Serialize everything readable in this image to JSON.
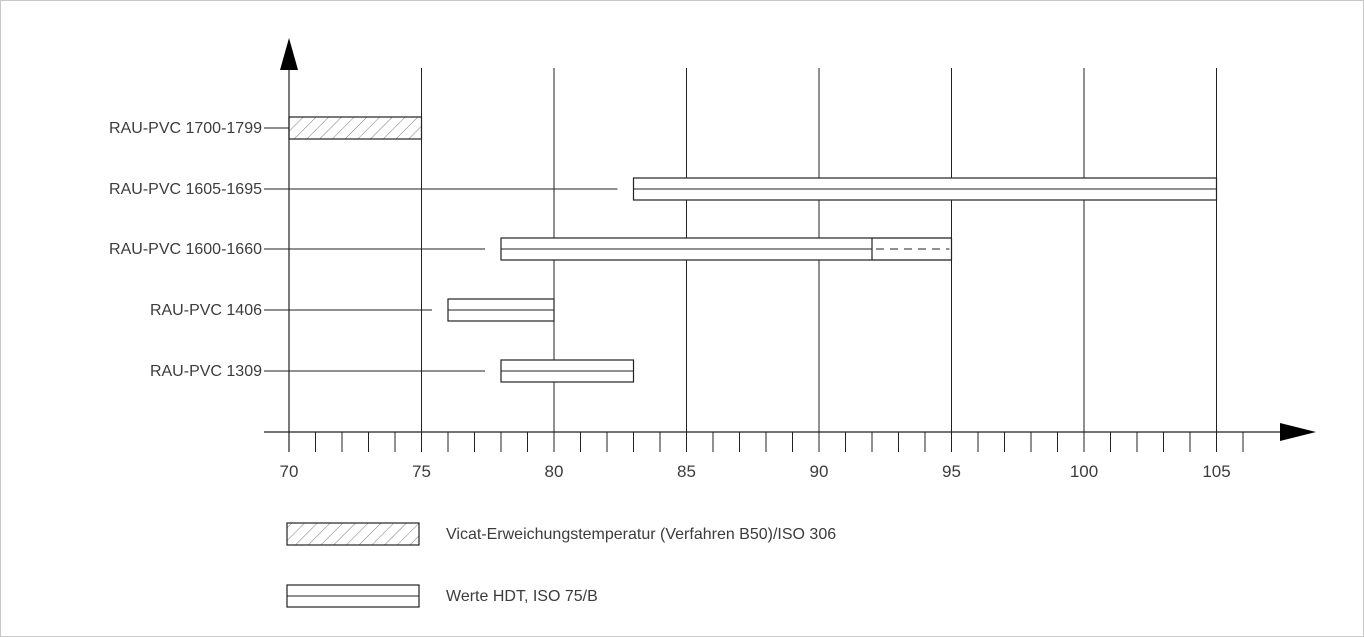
{
  "chart_data": {
    "type": "bar",
    "title": "",
    "xlabel": "",
    "ylabel": "",
    "x_range": [
      70,
      106
    ],
    "x_tick_labels": [
      "70",
      "75",
      "80",
      "85",
      "90",
      "95",
      "100",
      "105"
    ],
    "grid": "vertical lines every 5 units",
    "categories": [
      "RAU-PVC 1700-1799",
      "RAU-PVC 1605-1695",
      "RAU-PVC 1600-1660",
      "RAU-PVC 1406",
      "RAU-PVC 1309"
    ],
    "series": [
      {
        "name": "Vicat-Erweichungstemperatur (Verfahren B50)/ISO 306",
        "style": "hatched",
        "ranges": [
          [
            70,
            75
          ],
          null,
          null,
          null,
          null
        ]
      },
      {
        "name": "Werte HDT, ISO 75/B",
        "style": "double-line",
        "ranges": [
          null,
          [
            83,
            105
          ],
          [
            78,
            92
          ],
          [
            76,
            80
          ],
          [
            78,
            83
          ]
        ]
      }
    ],
    "extensions": [
      {
        "category": "RAU-PVC 1600-1660",
        "range": [
          92,
          95
        ],
        "style": "dashed"
      }
    ],
    "legend_position": "bottom-left"
  }
}
